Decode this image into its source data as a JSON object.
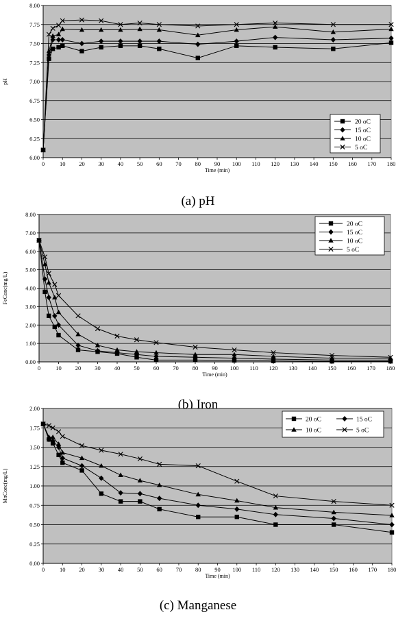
{
  "chart_data": [
    {
      "type": "line",
      "caption": "(a) pH",
      "xlabel": "Time (min)",
      "ylabel": "pH",
      "xlim": [
        0,
        180
      ],
      "ylim": [
        6.0,
        8.0
      ],
      "x_ticks": [
        "0",
        "10",
        "20",
        "30",
        "40",
        "50",
        "60",
        "70",
        "80",
        "90",
        "100",
        "110",
        "120",
        "130",
        "140",
        "150",
        "160",
        "170",
        "180"
      ],
      "y_ticks": [
        "6.00",
        "6.25",
        "6.50",
        "6.75",
        "7.00",
        "7.25",
        "7.50",
        "7.75",
        "8.00"
      ],
      "grid": "horizontal",
      "legend_position": "bottom-right",
      "series": [
        {
          "name": "20 oC",
          "marker": "square",
          "x": [
            0,
            3,
            5,
            8,
            10,
            20,
            30,
            40,
            50,
            60,
            80,
            100,
            120,
            150,
            180
          ],
          "y": [
            6.1,
            7.3,
            7.43,
            7.45,
            7.47,
            7.4,
            7.45,
            7.47,
            7.47,
            7.43,
            7.31,
            7.47,
            7.45,
            7.43,
            7.51
          ]
        },
        {
          "name": "15 oC",
          "marker": "diamond",
          "x": [
            0,
            3,
            5,
            8,
            10,
            20,
            30,
            40,
            50,
            60,
            80,
            100,
            120,
            150,
            180
          ],
          "y": [
            6.1,
            7.35,
            7.55,
            7.55,
            7.55,
            7.5,
            7.53,
            7.53,
            7.53,
            7.53,
            7.49,
            7.53,
            7.58,
            7.55,
            7.57
          ]
        },
        {
          "name": "10 oC",
          "marker": "triangle",
          "x": [
            0,
            3,
            5,
            8,
            10,
            20,
            30,
            40,
            50,
            60,
            80,
            100,
            120,
            150,
            180
          ],
          "y": [
            6.1,
            7.4,
            7.6,
            7.62,
            7.69,
            7.68,
            7.68,
            7.68,
            7.69,
            7.68,
            7.61,
            7.68,
            7.72,
            7.65,
            7.69
          ]
        },
        {
          "name": "5 oC",
          "marker": "x",
          "x": [
            0,
            3,
            5,
            8,
            10,
            20,
            30,
            40,
            50,
            60,
            80,
            100,
            120,
            150,
            180
          ],
          "y": [
            6.1,
            7.62,
            7.7,
            7.74,
            7.8,
            7.81,
            7.8,
            7.75,
            7.77,
            7.75,
            7.73,
            7.75,
            7.77,
            7.75,
            7.75
          ]
        }
      ]
    },
    {
      "type": "line",
      "caption": "(b) Iron",
      "xlabel": "Time (min)",
      "ylabel": "FeConc(mg/L)",
      "xlim": [
        0,
        180
      ],
      "ylim": [
        0,
        8
      ],
      "x_ticks": [
        "0",
        "10",
        "20",
        "30",
        "40",
        "50",
        "60",
        "70",
        "80",
        "90",
        "100",
        "110",
        "120",
        "130",
        "140",
        "150",
        "160",
        "170",
        "180"
      ],
      "y_ticks": [
        "0.00",
        "1.00",
        "2.00",
        "3.00",
        "4.00",
        "5.00",
        "6.00",
        "7.00",
        "8.00"
      ],
      "grid": "horizontal",
      "legend_position": "top-right",
      "series": [
        {
          "name": "20 oC",
          "marker": "square",
          "x": [
            0,
            3,
            5,
            8,
            10,
            20,
            30,
            40,
            50,
            60,
            80,
            100,
            120,
            150,
            180
          ],
          "y": [
            6.6,
            3.8,
            2.5,
            1.9,
            1.45,
            0.65,
            0.55,
            0.45,
            0.25,
            0.1,
            0.1,
            0.08,
            0.05,
            0.03,
            0.03
          ]
        },
        {
          "name": "15 oC",
          "marker": "diamond",
          "x": [
            0,
            3,
            5,
            8,
            10,
            20,
            30,
            40,
            50,
            60,
            80,
            100,
            120,
            150,
            180
          ],
          "y": [
            6.6,
            4.5,
            3.5,
            2.5,
            2.0,
            0.9,
            0.6,
            0.5,
            0.4,
            0.3,
            0.25,
            0.2,
            0.15,
            0.1,
            0.1
          ]
        },
        {
          "name": "10 oC",
          "marker": "triangle",
          "x": [
            0,
            3,
            5,
            8,
            10,
            20,
            30,
            40,
            50,
            60,
            80,
            100,
            120,
            150,
            180
          ],
          "y": [
            6.6,
            5.3,
            4.3,
            3.5,
            2.7,
            1.5,
            0.9,
            0.65,
            0.55,
            0.5,
            0.4,
            0.4,
            0.3,
            0.2,
            0.2
          ]
        },
        {
          "name": "5 oC",
          "marker": "x",
          "x": [
            0,
            3,
            5,
            8,
            10,
            20,
            30,
            40,
            50,
            60,
            80,
            100,
            120,
            150,
            180
          ],
          "y": [
            6.6,
            5.7,
            4.8,
            4.2,
            3.6,
            2.5,
            1.8,
            1.4,
            1.2,
            1.05,
            0.8,
            0.65,
            0.5,
            0.35,
            0.25
          ]
        }
      ]
    },
    {
      "type": "line",
      "caption": "(c) Manganese",
      "xlabel": "Time (min)",
      "ylabel": "MnConc(mg/L)",
      "xlim": [
        0,
        180
      ],
      "ylim": [
        0,
        2
      ],
      "x_ticks": [
        "0",
        "10",
        "20",
        "30",
        "40",
        "50",
        "60",
        "70",
        "80",
        "90",
        "100",
        "110",
        "120",
        "130",
        "140",
        "150",
        "160",
        "170",
        "180"
      ],
      "y_ticks": [
        "0.00",
        "0.25",
        "0.50",
        "0.75",
        "1.00",
        "1.25",
        "1.50",
        "1.75",
        "2.00"
      ],
      "grid": "horizontal",
      "legend_position": "top-right",
      "series": [
        {
          "name": "20 oC",
          "marker": "square",
          "x": [
            0,
            3,
            5,
            8,
            10,
            20,
            30,
            40,
            50,
            60,
            80,
            100,
            120,
            150,
            180
          ],
          "y": [
            1.8,
            1.6,
            1.55,
            1.4,
            1.3,
            1.2,
            0.9,
            0.8,
            0.8,
            0.7,
            0.6,
            0.6,
            0.5,
            0.5,
            0.4
          ]
        },
        {
          "name": "15 oC",
          "marker": "diamond",
          "x": [
            0,
            3,
            5,
            8,
            10,
            20,
            30,
            40,
            50,
            60,
            80,
            100,
            120,
            150,
            180
          ],
          "y": [
            1.8,
            1.6,
            1.58,
            1.5,
            1.36,
            1.26,
            1.1,
            0.91,
            0.9,
            0.84,
            0.75,
            0.7,
            0.63,
            0.58,
            0.5
          ]
        },
        {
          "name": "10 oC",
          "marker": "triangle",
          "x": [
            0,
            3,
            5,
            8,
            10,
            20,
            30,
            40,
            50,
            60,
            80,
            100,
            120,
            150,
            180
          ],
          "y": [
            1.8,
            1.63,
            1.63,
            1.54,
            1.43,
            1.36,
            1.26,
            1.14,
            1.07,
            1.01,
            0.89,
            0.81,
            0.72,
            0.66,
            0.62
          ]
        },
        {
          "name": "5 oC",
          "marker": "x",
          "x": [
            0,
            3,
            5,
            8,
            10,
            20,
            30,
            40,
            50,
            60,
            80,
            100,
            120,
            150,
            180
          ],
          "y": [
            1.8,
            1.78,
            1.75,
            1.7,
            1.64,
            1.52,
            1.46,
            1.41,
            1.35,
            1.28,
            1.26,
            1.06,
            0.87,
            0.8,
            0.75
          ]
        }
      ]
    }
  ]
}
